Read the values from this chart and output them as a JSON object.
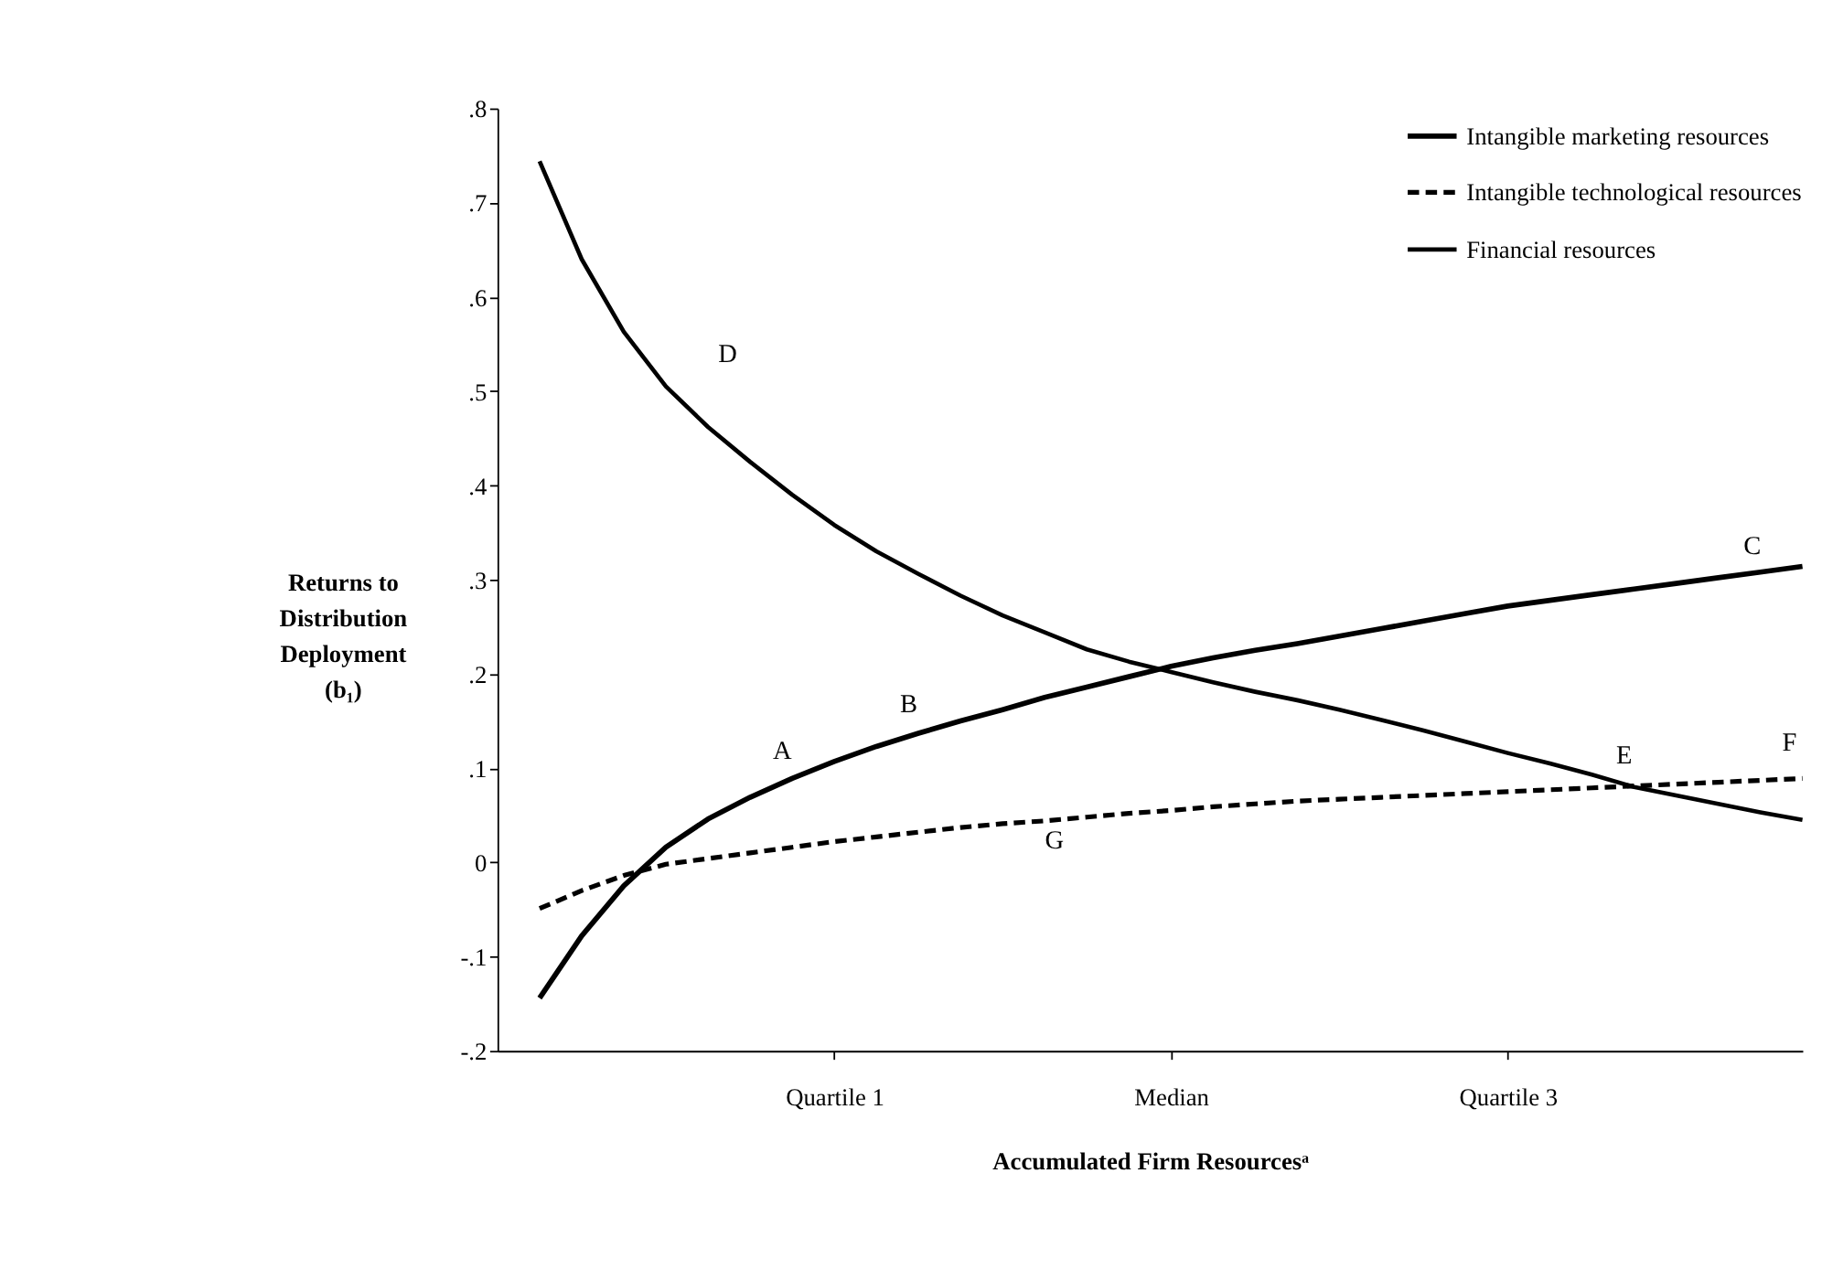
{
  "chart_data": {
    "type": "line",
    "xlabel": "Accumulated Firm Resourcesᵃ",
    "ylabel": "Returns to\nDistribution\nDeployment\n(b₁)",
    "categories": [
      null,
      null,
      null,
      null,
      null,
      null,
      null,
      null,
      "Quartile 1",
      null,
      null,
      null,
      null,
      null,
      null,
      null,
      "Median",
      null,
      null,
      null,
      null,
      null,
      null,
      null,
      "Quartile 3",
      null,
      null,
      null,
      null,
      null,
      null,
      null
    ],
    "ylim": [
      -0.2,
      0.8
    ],
    "yticks": [
      {
        "value": -0.2,
        "label": "-.2"
      },
      {
        "value": -0.1,
        "label": "-.1"
      },
      0,
      {
        "value": 0.1,
        "label": ".1"
      },
      {
        "value": 0.2,
        "label": ".2"
      },
      {
        "value": 0.3,
        "label": ".3"
      },
      {
        "value": 0.4,
        "label": ".4"
      },
      {
        "value": 0.5,
        "label": ".5"
      },
      {
        "value": 0.6,
        "label": ".6"
      },
      {
        "value": 0.7,
        "label": ".7"
      },
      {
        "value": 0.8,
        "label": ".8"
      }
    ],
    "grid": false,
    "legend": "top right",
    "marker": "none",
    "series": [
      {
        "name": "Intangible marketing resources",
        "color": "#000000",
        "line_style": "solid",
        "values": [
          null,
          -0.144,
          -0.078,
          -0.025,
          0.016,
          0.046,
          0.069,
          0.089,
          0.107,
          0.123,
          0.137,
          0.15,
          0.162,
          0.175,
          0.186,
          0.197,
          0.208,
          0.217,
          0.225,
          0.232,
          0.24,
          0.248,
          0.256,
          0.264,
          0.272,
          0.278,
          0.284,
          0.29,
          0.296,
          0.302,
          0.308,
          0.314
        ]
      },
      {
        "name": "Intangible technological resources",
        "color": "#000000",
        "line_style": "dashed",
        "values": [
          null,
          -0.049,
          -0.03,
          -0.014,
          -0.002,
          0.004,
          0.01,
          0.016,
          0.022,
          0.027,
          0.032,
          0.037,
          0.041,
          0.044,
          0.048,
          0.052,
          0.055,
          0.059,
          0.062,
          0.065,
          0.067,
          0.069,
          0.071,
          0.073,
          0.075,
          0.077,
          0.079,
          0.081,
          0.083,
          0.085,
          0.087,
          0.089
        ]
      },
      {
        "name": "Financial resources",
        "color": "#000000",
        "line_style": "solid",
        "values": [
          null,
          0.744,
          0.64,
          0.563,
          0.505,
          0.462,
          0.425,
          0.39,
          0.358,
          0.33,
          0.306,
          0.283,
          0.262,
          0.244,
          0.226,
          0.213,
          0.202,
          0.191,
          0.181,
          0.172,
          0.162,
          0.151,
          0.14,
          0.128,
          0.116,
          0.105,
          0.093,
          0.08,
          0.071,
          0.062,
          0.053,
          0.045
        ]
      }
    ],
    "annotations": [
      "A",
      "B",
      "C",
      "D",
      "E",
      "F",
      "G"
    ]
  }
}
